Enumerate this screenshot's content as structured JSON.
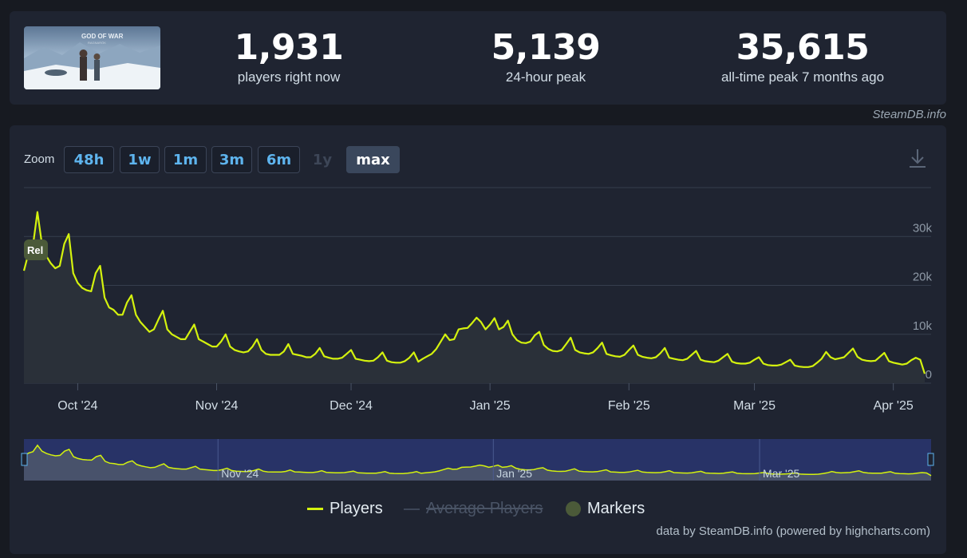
{
  "stats": {
    "current": {
      "value": "1,931",
      "label": "players right now"
    },
    "peak24": {
      "value": "5,139",
      "label": "24-hour peak"
    },
    "alltime": {
      "value": "35,615",
      "label": "all-time peak 7 months ago"
    }
  },
  "game_thumb": {
    "alt": "GOD OF WAR RAGNARÖK"
  },
  "credit_top": "SteamDB.info",
  "zoom": {
    "label": "Zoom",
    "buttons": [
      {
        "label": "48h",
        "state": "enabled"
      },
      {
        "label": "1w",
        "state": "enabled"
      },
      {
        "label": "1m",
        "state": "enabled"
      },
      {
        "label": "3m",
        "state": "enabled"
      },
      {
        "label": "6m",
        "state": "enabled"
      },
      {
        "label": "1y",
        "state": "disabled"
      },
      {
        "label": "max",
        "state": "active"
      }
    ]
  },
  "chart_data": {
    "type": "line",
    "title": "",
    "xlabel": "",
    "ylabel": "",
    "ylim": [
      0,
      40000
    ],
    "y_ticks": [
      {
        "v": 0,
        "label": "0"
      },
      {
        "v": 10000,
        "label": "10k"
      },
      {
        "v": 20000,
        "label": "20k"
      },
      {
        "v": 30000,
        "label": "30k"
      }
    ],
    "x_range": [
      "2024-09-19",
      "2025-04-08"
    ],
    "x_ticks": [
      {
        "date": "2024-10-01",
        "label": "Oct '24"
      },
      {
        "date": "2024-11-01",
        "label": "Nov '24"
      },
      {
        "date": "2024-12-01",
        "label": "Dec '24"
      },
      {
        "date": "2025-01-01",
        "label": "Jan '25"
      },
      {
        "date": "2025-02-01",
        "label": "Feb '25"
      },
      {
        "date": "2025-03-01",
        "label": "Mar '25"
      },
      {
        "date": "2025-04-01",
        "label": "Apr '25"
      }
    ],
    "grid": true,
    "legend": "bottom",
    "colors": {
      "players": "#d4f20e",
      "average": "#3d4657",
      "markers": "#4b5a39",
      "navigator": "#2b3775"
    },
    "markers": [
      {
        "date": "2024-09-19",
        "label": "Rel"
      }
    ],
    "series": [
      {
        "name": "Players",
        "visible": true,
        "points": [
          [
            "2024-09-19",
            23000
          ],
          [
            "2024-09-20",
            26500
          ],
          [
            "2024-09-21",
            28000
          ],
          [
            "2024-09-22",
            35000
          ],
          [
            "2024-09-23",
            28500
          ],
          [
            "2024-09-24",
            26000
          ],
          [
            "2024-09-25",
            24500
          ],
          [
            "2024-09-26",
            23500
          ],
          [
            "2024-09-27",
            24000
          ],
          [
            "2024-09-28",
            28500
          ],
          [
            "2024-09-29",
            30500
          ],
          [
            "2024-09-30",
            22500
          ],
          [
            "2024-10-01",
            20500
          ],
          [
            "2024-10-02",
            19500
          ],
          [
            "2024-10-03",
            19000
          ],
          [
            "2024-10-04",
            18800
          ],
          [
            "2024-10-05",
            22500
          ],
          [
            "2024-10-06",
            24000
          ],
          [
            "2024-10-07",
            17500
          ],
          [
            "2024-10-08",
            15500
          ],
          [
            "2024-10-09",
            15000
          ],
          [
            "2024-10-10",
            14000
          ],
          [
            "2024-10-11",
            14000
          ],
          [
            "2024-10-12",
            16500
          ],
          [
            "2024-10-13",
            18000
          ],
          [
            "2024-10-14",
            14000
          ],
          [
            "2024-10-15",
            12500
          ],
          [
            "2024-10-16",
            11500
          ],
          [
            "2024-10-17",
            10500
          ],
          [
            "2024-10-18",
            11000
          ],
          [
            "2024-10-19",
            13000
          ],
          [
            "2024-10-20",
            14800
          ],
          [
            "2024-10-21",
            11000
          ],
          [
            "2024-10-22",
            10000
          ],
          [
            "2024-10-23",
            9500
          ],
          [
            "2024-10-24",
            9000
          ],
          [
            "2024-10-25",
            9000
          ],
          [
            "2024-10-26",
            10500
          ],
          [
            "2024-10-27",
            12000
          ],
          [
            "2024-10-28",
            9000
          ],
          [
            "2024-10-29",
            8500
          ],
          [
            "2024-10-30",
            8000
          ],
          [
            "2024-10-31",
            7500
          ],
          [
            "2024-11-01",
            7500
          ],
          [
            "2024-11-02",
            8500
          ],
          [
            "2024-11-03",
            10000
          ],
          [
            "2024-11-04",
            7500
          ],
          [
            "2024-11-05",
            6800
          ],
          [
            "2024-11-06",
            6500
          ],
          [
            "2024-11-07",
            6300
          ],
          [
            "2024-11-08",
            6500
          ],
          [
            "2024-11-09",
            7500
          ],
          [
            "2024-11-10",
            9000
          ],
          [
            "2024-11-11",
            6800
          ],
          [
            "2024-11-12",
            6000
          ],
          [
            "2024-11-13",
            5800
          ],
          [
            "2024-11-14",
            5800
          ],
          [
            "2024-11-15",
            5800
          ],
          [
            "2024-11-16",
            6500
          ],
          [
            "2024-11-17",
            8000
          ],
          [
            "2024-11-18",
            6000
          ],
          [
            "2024-11-19",
            5800
          ],
          [
            "2024-11-20",
            5600
          ],
          [
            "2024-11-21",
            5300
          ],
          [
            "2024-11-22",
            5300
          ],
          [
            "2024-11-23",
            6000
          ],
          [
            "2024-11-24",
            7200
          ],
          [
            "2024-11-25",
            5500
          ],
          [
            "2024-11-26",
            5200
          ],
          [
            "2024-11-27",
            5000
          ],
          [
            "2024-11-28",
            5000
          ],
          [
            "2024-11-29",
            5200
          ],
          [
            "2024-11-30",
            6000
          ],
          [
            "2024-12-01",
            6800
          ],
          [
            "2024-12-02",
            5000
          ],
          [
            "2024-12-03",
            4800
          ],
          [
            "2024-12-04",
            4600
          ],
          [
            "2024-12-05",
            4500
          ],
          [
            "2024-12-06",
            4600
          ],
          [
            "2024-12-07",
            5300
          ],
          [
            "2024-12-08",
            6300
          ],
          [
            "2024-12-09",
            4600
          ],
          [
            "2024-12-10",
            4300
          ],
          [
            "2024-12-11",
            4200
          ],
          [
            "2024-12-12",
            4200
          ],
          [
            "2024-12-13",
            4500
          ],
          [
            "2024-12-14",
            5200
          ],
          [
            "2024-12-15",
            6300
          ],
          [
            "2024-12-16",
            4400
          ],
          [
            "2024-12-17",
            5000
          ],
          [
            "2024-12-18",
            5500
          ],
          [
            "2024-12-19",
            6000
          ],
          [
            "2024-12-20",
            7000
          ],
          [
            "2024-12-21",
            8500
          ],
          [
            "2024-12-22",
            10000
          ],
          [
            "2024-12-23",
            8800
          ],
          [
            "2024-12-24",
            9000
          ],
          [
            "2024-12-25",
            11000
          ],
          [
            "2024-12-26",
            11200
          ],
          [
            "2024-12-27",
            11300
          ],
          [
            "2024-12-28",
            12300
          ],
          [
            "2024-12-29",
            13400
          ],
          [
            "2024-12-30",
            12500
          ],
          [
            "2024-12-31",
            11000
          ],
          [
            "2025-01-01",
            12000
          ],
          [
            "2025-01-02",
            13300
          ],
          [
            "2025-01-03",
            11000
          ],
          [
            "2025-01-04",
            11500
          ],
          [
            "2025-01-05",
            12800
          ],
          [
            "2025-01-06",
            10000
          ],
          [
            "2025-01-07",
            8800
          ],
          [
            "2025-01-08",
            8300
          ],
          [
            "2025-01-09",
            8200
          ],
          [
            "2025-01-10",
            8500
          ],
          [
            "2025-01-11",
            9800
          ],
          [
            "2025-01-12",
            10500
          ],
          [
            "2025-01-13",
            7800
          ],
          [
            "2025-01-14",
            7000
          ],
          [
            "2025-01-15",
            6600
          ],
          [
            "2025-01-16",
            6500
          ],
          [
            "2025-01-17",
            6800
          ],
          [
            "2025-01-18",
            8000
          ],
          [
            "2025-01-19",
            9300
          ],
          [
            "2025-01-20",
            6800
          ],
          [
            "2025-01-21",
            6300
          ],
          [
            "2025-01-22",
            6100
          ],
          [
            "2025-01-23",
            6000
          ],
          [
            "2025-01-24",
            6300
          ],
          [
            "2025-01-25",
            7200
          ],
          [
            "2025-01-26",
            8300
          ],
          [
            "2025-01-27",
            6000
          ],
          [
            "2025-01-28",
            5700
          ],
          [
            "2025-01-29",
            5500
          ],
          [
            "2025-01-30",
            5400
          ],
          [
            "2025-01-31",
            5800
          ],
          [
            "2025-02-01",
            6800
          ],
          [
            "2025-02-02",
            7700
          ],
          [
            "2025-02-03",
            5800
          ],
          [
            "2025-02-04",
            5400
          ],
          [
            "2025-02-05",
            5200
          ],
          [
            "2025-02-06",
            5100
          ],
          [
            "2025-02-07",
            5300
          ],
          [
            "2025-02-08",
            6100
          ],
          [
            "2025-02-09",
            7200
          ],
          [
            "2025-02-10",
            5200
          ],
          [
            "2025-02-11",
            5000
          ],
          [
            "2025-02-12",
            4800
          ],
          [
            "2025-02-13",
            4700
          ],
          [
            "2025-02-14",
            5000
          ],
          [
            "2025-02-15",
            5800
          ],
          [
            "2025-02-16",
            6600
          ],
          [
            "2025-02-17",
            4800
          ],
          [
            "2025-02-18",
            4500
          ],
          [
            "2025-02-19",
            4400
          ],
          [
            "2025-02-20",
            4300
          ],
          [
            "2025-02-21",
            4600
          ],
          [
            "2025-02-22",
            5300
          ],
          [
            "2025-02-23",
            6000
          ],
          [
            "2025-02-24",
            4400
          ],
          [
            "2025-02-25",
            4100
          ],
          [
            "2025-02-26",
            4000
          ],
          [
            "2025-02-27",
            4000
          ],
          [
            "2025-02-28",
            4200
          ],
          [
            "2025-03-01",
            4800
          ],
          [
            "2025-03-02",
            5300
          ],
          [
            "2025-03-03",
            4000
          ],
          [
            "2025-03-04",
            3700
          ],
          [
            "2025-03-05",
            3600
          ],
          [
            "2025-03-06",
            3600
          ],
          [
            "2025-03-07",
            3800
          ],
          [
            "2025-03-08",
            4300
          ],
          [
            "2025-03-09",
            4800
          ],
          [
            "2025-03-10",
            3600
          ],
          [
            "2025-03-11",
            3400
          ],
          [
            "2025-03-12",
            3300
          ],
          [
            "2025-03-13",
            3300
          ],
          [
            "2025-03-14",
            3500
          ],
          [
            "2025-03-15",
            4200
          ],
          [
            "2025-03-16",
            5000
          ],
          [
            "2025-03-17",
            6400
          ],
          [
            "2025-03-18",
            5300
          ],
          [
            "2025-03-19",
            4900
          ],
          [
            "2025-03-20",
            5100
          ],
          [
            "2025-03-21",
            5300
          ],
          [
            "2025-03-22",
            6200
          ],
          [
            "2025-03-23",
            7100
          ],
          [
            "2025-03-24",
            5400
          ],
          [
            "2025-03-25",
            4800
          ],
          [
            "2025-03-26",
            4600
          ],
          [
            "2025-03-27",
            4500
          ],
          [
            "2025-03-28",
            4600
          ],
          [
            "2025-03-29",
            5400
          ],
          [
            "2025-03-30",
            6200
          ],
          [
            "2025-03-31",
            4500
          ],
          [
            "2025-04-01",
            4200
          ],
          [
            "2025-04-02",
            4000
          ],
          [
            "2025-04-03",
            3800
          ],
          [
            "2025-04-04",
            4000
          ],
          [
            "2025-04-05",
            4700
          ],
          [
            "2025-04-06",
            5200
          ],
          [
            "2025-04-07",
            4800
          ],
          [
            "2025-04-08",
            1931
          ]
        ]
      },
      {
        "name": "Average Players",
        "visible": false
      },
      {
        "name": "Markers",
        "visible": true
      }
    ],
    "navigator_labels": [
      {
        "date": "2024-11-01",
        "label": "Nov '24"
      },
      {
        "date": "2025-01-01",
        "label": "Jan '25"
      },
      {
        "date": "2025-03-01",
        "label": "Mar '25"
      }
    ]
  },
  "legend": {
    "players": "Players",
    "average": "Average Players",
    "markers": "Markers"
  },
  "credit_bottom": "data by SteamDB.info (powered by highcharts.com)"
}
